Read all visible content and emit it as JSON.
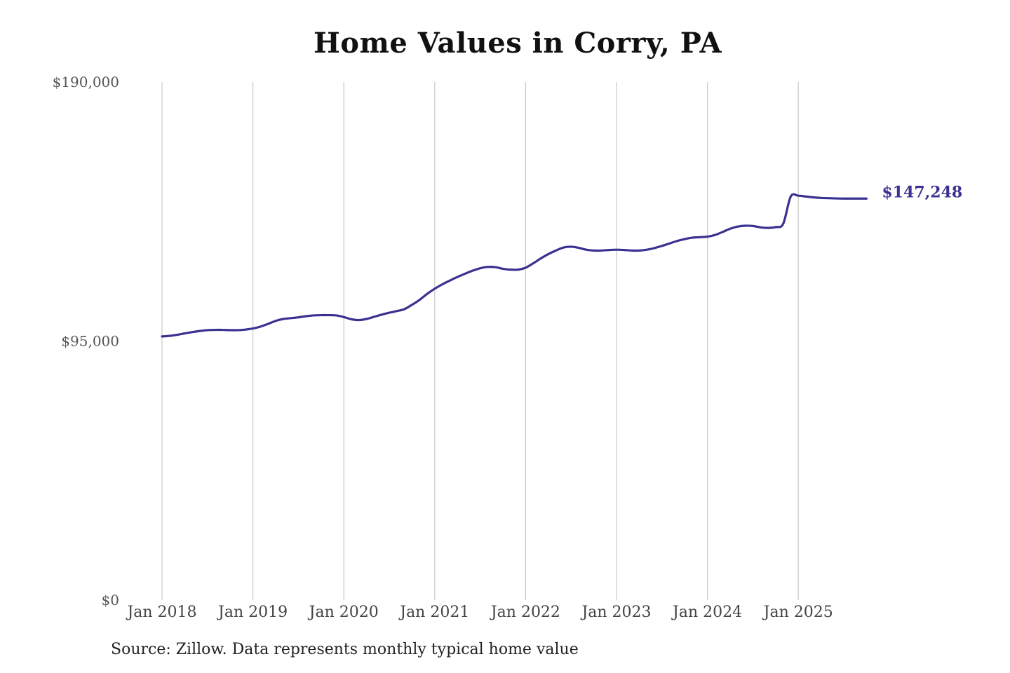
{
  "chart_data": {
    "type": "line",
    "title": "Home Values in Corry, PA",
    "source": "Source: Zillow. Data represents monthly typical home value",
    "xlabel": "",
    "ylabel": "",
    "ylim": [
      0,
      190000
    ],
    "y_ticks": [
      "$190,000",
      "$95,000",
      "$0"
    ],
    "y_tick_values": [
      190000,
      95000,
      0
    ],
    "x_ticks": [
      "Jan 2018",
      "Jan 2019",
      "Jan 2020",
      "Jan 2021",
      "Jan 2022",
      "Jan 2023",
      "Jan 2024",
      "Jan 2025"
    ],
    "x_tick_dates": [
      "2018-01",
      "2019-01",
      "2020-01",
      "2021-01",
      "2022-01",
      "2023-01",
      "2024-01",
      "2025-01"
    ],
    "grid": "vertical",
    "line_color": "#3a3191",
    "end_label": "$147,248",
    "series": [
      {
        "x": [
          "2018-01",
          "2018-02",
          "2018-03",
          "2018-04",
          "2018-05",
          "2018-06",
          "2018-07",
          "2018-08",
          "2018-09",
          "2018-10",
          "2018-11",
          "2018-12",
          "2019-01",
          "2019-02",
          "2019-03",
          "2019-04",
          "2019-05",
          "2019-06",
          "2019-07",
          "2019-08",
          "2019-09",
          "2019-10",
          "2019-11",
          "2019-12",
          "2020-01",
          "2020-02",
          "2020-03",
          "2020-04",
          "2020-05",
          "2020-06",
          "2020-07",
          "2020-08",
          "2020-09",
          "2020-10",
          "2020-11",
          "2020-12",
          "2021-01",
          "2021-02",
          "2021-03",
          "2021-04",
          "2021-05",
          "2021-06",
          "2021-07",
          "2021-08",
          "2021-09",
          "2021-10",
          "2021-11",
          "2021-12",
          "2022-01",
          "2022-02",
          "2022-03",
          "2022-04",
          "2022-05",
          "2022-06",
          "2022-07",
          "2022-08",
          "2022-09",
          "2022-10",
          "2022-11",
          "2022-12",
          "2023-01",
          "2023-02",
          "2023-03",
          "2023-04",
          "2023-05",
          "2023-06",
          "2023-07",
          "2023-08",
          "2023-09",
          "2023-10",
          "2023-11",
          "2023-12",
          "2024-01",
          "2024-02",
          "2024-03",
          "2024-04",
          "2024-05",
          "2024-06",
          "2024-07",
          "2024-08",
          "2024-09",
          "2024-10",
          "2024-11",
          "2024-12",
          "2025-01",
          "2025-02",
          "2025-03",
          "2025-04",
          "2025-05",
          "2025-06",
          "2025-07",
          "2025-08",
          "2025-09",
          "2025-10"
        ],
        "values": [
          96700,
          96900,
          97300,
          97800,
          98300,
          98700,
          99000,
          99100,
          99100,
          99000,
          99000,
          99200,
          99600,
          100300,
          101300,
          102400,
          103100,
          103400,
          103700,
          104100,
          104400,
          104500,
          104500,
          104400,
          103800,
          103000,
          102700,
          103100,
          103900,
          104700,
          105400,
          106000,
          106700,
          108300,
          110100,
          112300,
          114200,
          115800,
          117200,
          118500,
          119700,
          120800,
          121700,
          122200,
          122100,
          121500,
          121200,
          121200,
          121900,
          123500,
          125300,
          126900,
          128200,
          129300,
          129600,
          129200,
          128500,
          128200,
          128200,
          128400,
          128500,
          128400,
          128200,
          128200,
          128500,
          129100,
          129900,
          130800,
          131700,
          132400,
          132900,
          133100,
          133300,
          133900,
          135000,
          136200,
          137000,
          137300,
          137200,
          136700,
          136500,
          136800,
          138000,
          148000,
          148300,
          148000,
          147700,
          147500,
          147400,
          147300,
          147250,
          147260,
          147248,
          147248
        ]
      }
    ]
  }
}
